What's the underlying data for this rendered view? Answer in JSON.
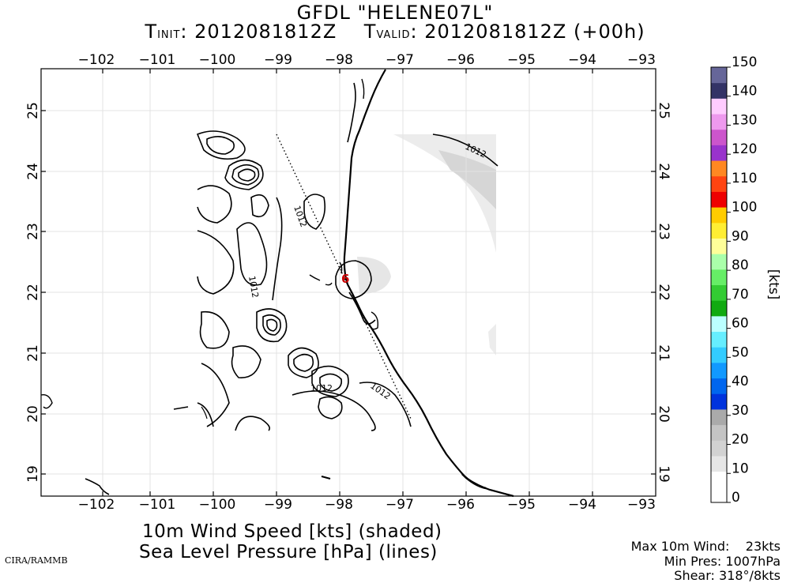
{
  "title": {
    "model_line": "GFDL \"HELENE07L\"",
    "t_init_label": "T",
    "t_init_sub": "INIT",
    "t_init_value": ": 2012081812Z",
    "t_valid_label": "T",
    "t_valid_sub": "VALID",
    "t_valid_value": ": 2012081812Z (+00h)"
  },
  "map": {
    "lon_ticks": [
      "−102",
      "−101",
      "−100",
      "−99",
      "−98",
      "−97",
      "−96",
      "−95",
      "−94",
      "−93"
    ],
    "lat_ticks": [
      "19",
      "20",
      "21",
      "22",
      "23",
      "24",
      "25"
    ],
    "contour_labels": [
      "1012",
      "1012",
      "1012",
      "1012",
      "1012"
    ],
    "storm_symbol": "6",
    "storm_color": "#cc0000"
  },
  "colorbar": {
    "unit_label": "[kts]",
    "levels": [
      "0",
      "10",
      "20",
      "30",
      "40",
      "50",
      "60",
      "70",
      "80",
      "90",
      "100",
      "110",
      "120",
      "130",
      "140",
      "150"
    ],
    "colors": [
      "#ffffff",
      "#ffffff",
      "#e6e6e6",
      "#d2d2d2",
      "#c4c4c4",
      "#aaaaaa",
      "#0033dd",
      "#0066ee",
      "#1199ff",
      "#33ccff",
      "#66eeff",
      "#bbffff",
      "#11aa11",
      "#33cc33",
      "#66ee66",
      "#aaffaa",
      "#ffff99",
      "#ffee33",
      "#ffcc00",
      "#ee0000",
      "#ff4411",
      "#ff8822",
      "#9933cc",
      "#cc55cc",
      "#ee99ee",
      "#ffccff",
      "#333366",
      "#666699"
    ]
  },
  "captions": {
    "line1": "10m Wind Speed [kts] (shaded)",
    "line2": "Sea Level Pressure [hPa] (lines)"
  },
  "stats": {
    "max_wind_label": "Max 10m Wind:",
    "max_wind_value": "23kts",
    "min_pres_label": "Min Pres:",
    "min_pres_value": "1007hPa",
    "shear_label": "Shear:",
    "shear_value": "318°/8kts"
  },
  "credit": "CIRA/RAMMB"
}
